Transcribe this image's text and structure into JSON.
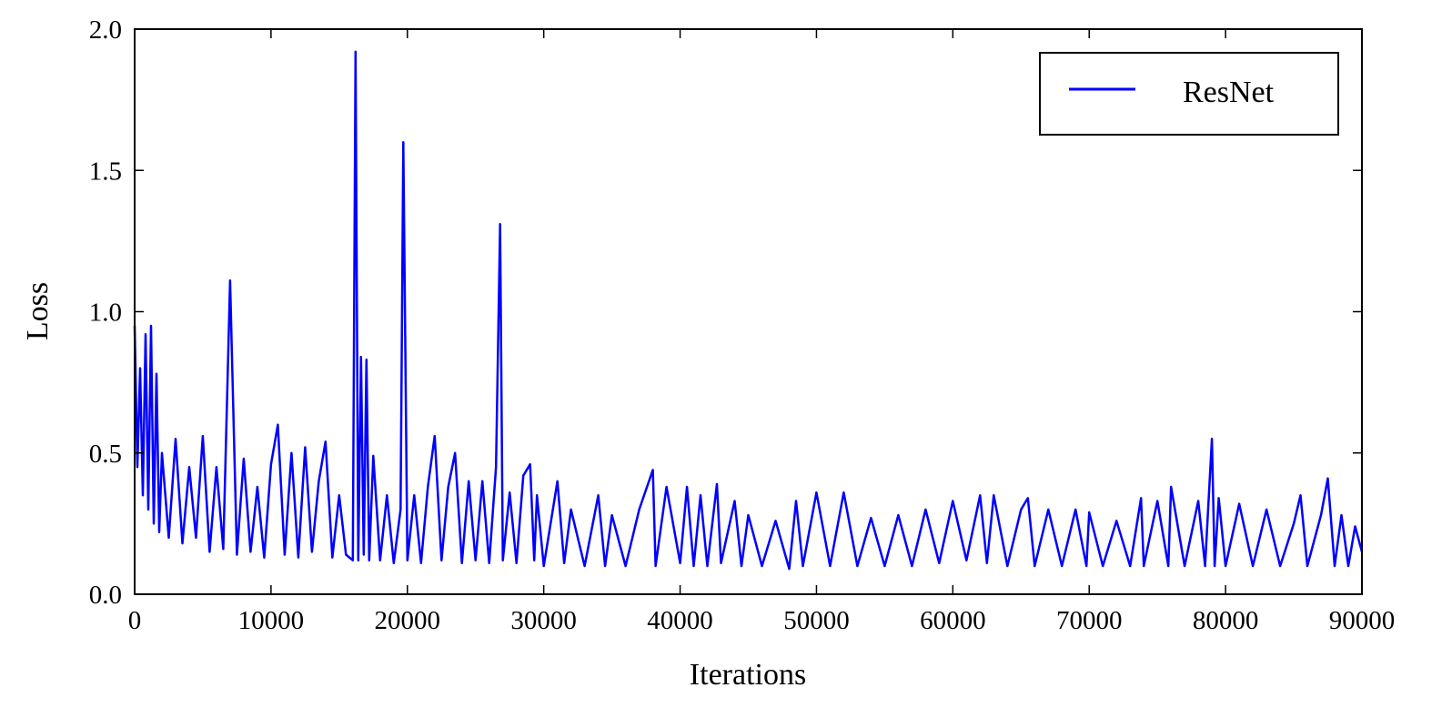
{
  "chart_data": {
    "type": "line",
    "title": "",
    "xlabel": "Iterations",
    "ylabel": "Loss",
    "xlim": [
      0,
      90000
    ],
    "ylim": [
      0.0,
      2.0
    ],
    "x_ticks": [
      "0",
      "10000",
      "20000",
      "30000",
      "40000",
      "50000",
      "60000",
      "70000",
      "80000",
      "90000"
    ],
    "y_ticks": [
      "0.0",
      "0.5",
      "1.0",
      "1.5",
      "2.0"
    ],
    "grid": false,
    "legend_position": "top-right",
    "series": [
      {
        "name": "ResNet",
        "color": "#0000ff",
        "x": [
          0,
          200,
          400,
          600,
          800,
          1000,
          1200,
          1400,
          1600,
          1800,
          2000,
          2500,
          3000,
          3500,
          4000,
          4500,
          5000,
          5500,
          6000,
          6500,
          7000,
          7500,
          8000,
          8500,
          9000,
          9500,
          10000,
          10500,
          11000,
          11500,
          12000,
          12500,
          13000,
          13500,
          14000,
          14500,
          15000,
          15500,
          16000,
          16200,
          16400,
          16600,
          16800,
          17000,
          17200,
          17500,
          18000,
          18500,
          19000,
          19500,
          19700,
          20000,
          20500,
          21000,
          21500,
          22000,
          22500,
          23000,
          23500,
          24000,
          24500,
          25000,
          25500,
          26000,
          26500,
          26800,
          27000,
          27500,
          28000,
          28500,
          29000,
          29300,
          29500,
          30000,
          31000,
          31500,
          32000,
          33000,
          34000,
          34500,
          35000,
          36000,
          37000,
          38000,
          38200,
          39000,
          40000,
          40500,
          41000,
          41500,
          42000,
          42700,
          43000,
          44000,
          44500,
          45000,
          46000,
          47000,
          48000,
          48500,
          49000,
          50000,
          51000,
          52000,
          53000,
          54000,
          55000,
          56000,
          57000,
          58000,
          59000,
          60000,
          61000,
          62000,
          62500,
          63000,
          64000,
          65000,
          65500,
          66000,
          67000,
          68000,
          69000,
          69800,
          70000,
          71000,
          72000,
          73000,
          73800,
          74000,
          75000,
          75800,
          76000,
          77000,
          78000,
          78500,
          79000,
          79200,
          79500,
          80000,
          81000,
          82000,
          83000,
          84000,
          85000,
          85500,
          86000,
          87000,
          87500,
          88000,
          88500,
          89000,
          89500,
          90000
        ],
        "y": [
          0.95,
          0.45,
          0.8,
          0.35,
          0.92,
          0.3,
          0.95,
          0.25,
          0.78,
          0.22,
          0.5,
          0.2,
          0.55,
          0.18,
          0.45,
          0.2,
          0.56,
          0.15,
          0.45,
          0.16,
          1.11,
          0.14,
          0.48,
          0.15,
          0.38,
          0.13,
          0.46,
          0.6,
          0.14,
          0.5,
          0.13,
          0.52,
          0.15,
          0.4,
          0.54,
          0.13,
          0.35,
          0.14,
          0.12,
          1.92,
          0.12,
          0.84,
          0.14,
          0.83,
          0.12,
          0.49,
          0.12,
          0.35,
          0.11,
          0.3,
          1.6,
          0.12,
          0.35,
          0.11,
          0.38,
          0.56,
          0.12,
          0.38,
          0.5,
          0.11,
          0.4,
          0.12,
          0.4,
          0.11,
          0.45,
          1.31,
          0.12,
          0.36,
          0.11,
          0.42,
          0.46,
          0.12,
          0.35,
          0.1,
          0.4,
          0.11,
          0.3,
          0.1,
          0.35,
          0.1,
          0.28,
          0.1,
          0.3,
          0.44,
          0.1,
          0.38,
          0.11,
          0.38,
          0.1,
          0.35,
          0.1,
          0.39,
          0.11,
          0.33,
          0.1,
          0.28,
          0.1,
          0.26,
          0.09,
          0.33,
          0.1,
          0.36,
          0.1,
          0.36,
          0.1,
          0.27,
          0.1,
          0.28,
          0.1,
          0.3,
          0.11,
          0.33,
          0.12,
          0.35,
          0.11,
          0.35,
          0.1,
          0.3,
          0.34,
          0.1,
          0.3,
          0.1,
          0.3,
          0.1,
          0.29,
          0.1,
          0.26,
          0.1,
          0.34,
          0.1,
          0.33,
          0.1,
          0.38,
          0.1,
          0.33,
          0.1,
          0.55,
          0.1,
          0.34,
          0.1,
          0.32,
          0.1,
          0.3,
          0.1,
          0.25,
          0.35,
          0.1,
          0.28,
          0.41,
          0.1,
          0.28,
          0.1,
          0.24,
          0.15
        ]
      }
    ]
  }
}
